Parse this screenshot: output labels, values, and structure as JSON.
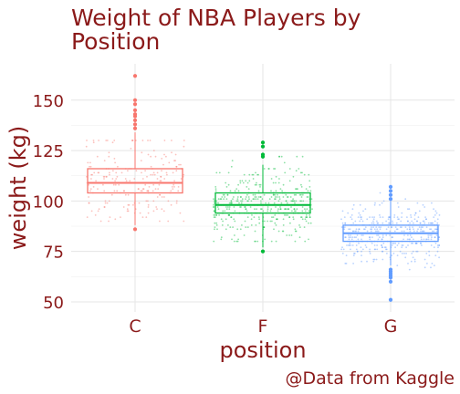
{
  "chart_data": {
    "type": "box",
    "title_lines": [
      "Weight of NBA Players by",
      "Position"
    ],
    "xlabel": "position",
    "ylabel": "weight (kg)",
    "caption": "@Data from Kaggle",
    "categories": [
      "C",
      "F",
      "G"
    ],
    "yticks": [
      50,
      75,
      100,
      125,
      150
    ],
    "yticklabels": [
      "50",
      "75",
      "100",
      "125",
      "150"
    ],
    "ylim": [
      45,
      168
    ],
    "grid": true,
    "legend": "none",
    "colors": {
      "C": "#f8766d",
      "F": "#00ba38",
      "G": "#619cff",
      "text": "#8b1a1a",
      "grid": "#e5e5e5"
    },
    "boxes": [
      {
        "category": "C",
        "q1": 104,
        "median": 109,
        "q3": 116,
        "whisker_low": 88,
        "whisker_high": 134,
        "outliers": [
          86,
          136,
          138,
          140,
          142,
          143,
          145,
          148,
          150,
          162
        ]
      },
      {
        "category": "F",
        "q1": 94,
        "median": 98,
        "q3": 104,
        "whisker_low": 77,
        "whisker_high": 118,
        "outliers": [
          75,
          122,
          123,
          127,
          129
        ]
      },
      {
        "category": "G",
        "q1": 80,
        "median": 84,
        "q3": 88,
        "whisker_low": 68,
        "whisker_high": 100,
        "outliers": [
          51,
          60,
          62,
          63,
          64,
          65,
          66,
          101,
          103,
          105,
          107
        ]
      }
    ],
    "jitter_points": [
      {
        "category": "C",
        "center": 109,
        "spread": 12,
        "range": [
          90,
          130
        ],
        "count": 220
      },
      {
        "category": "F",
        "center": 98,
        "spread": 9,
        "range": [
          80,
          122
        ],
        "count": 420
      },
      {
        "category": "G",
        "center": 84,
        "spread": 7,
        "range": [
          66,
          104
        ],
        "count": 420
      }
    ]
  }
}
